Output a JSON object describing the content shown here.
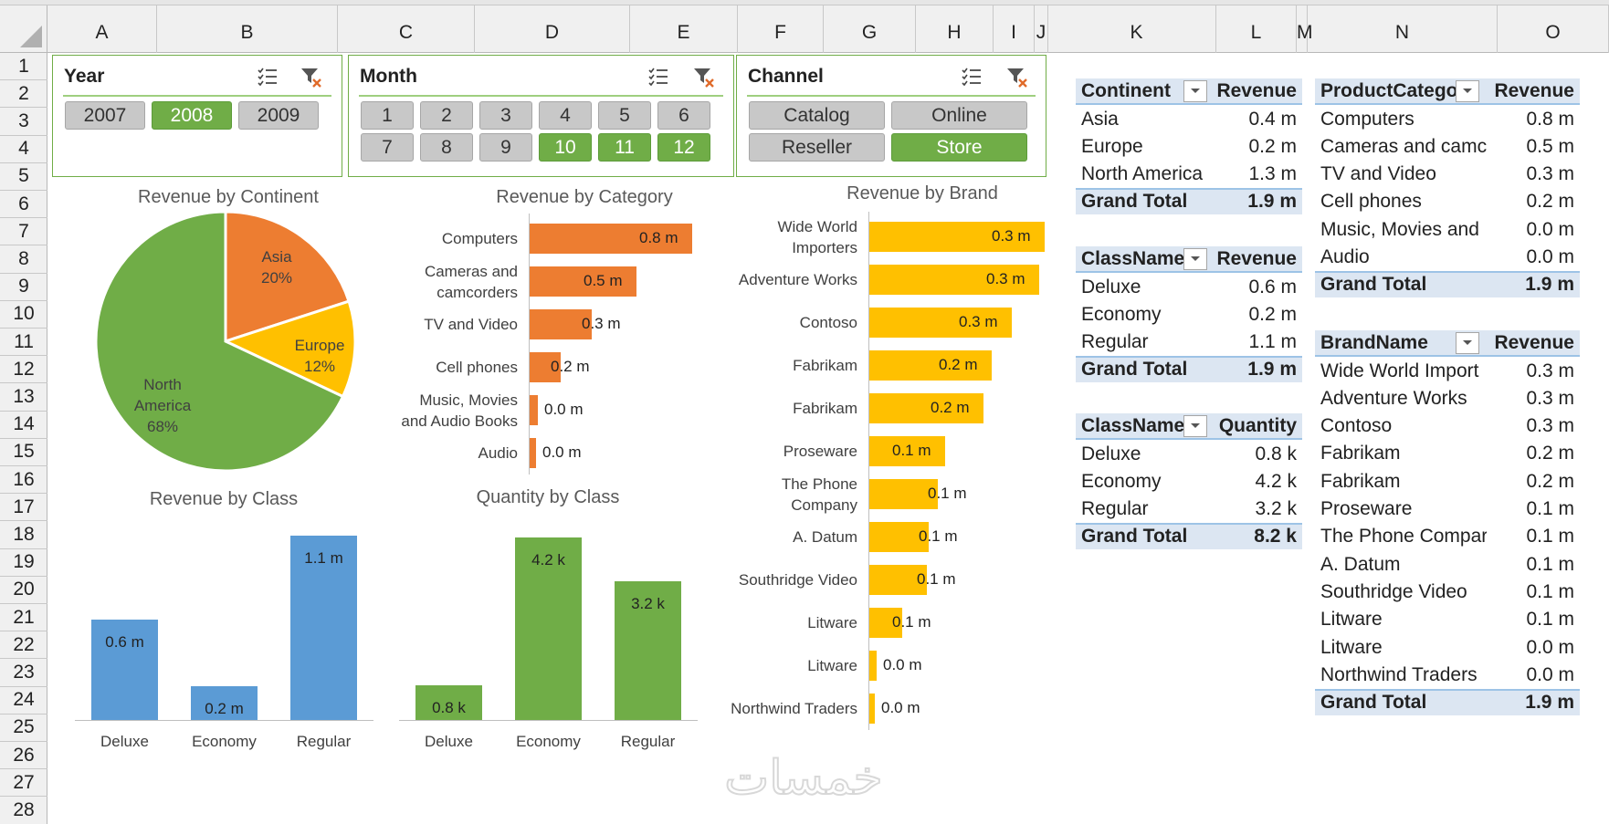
{
  "columns": [
    "A",
    "B",
    "C",
    "D",
    "E",
    "F",
    "G",
    "H",
    "I",
    "J",
    "K",
    "L",
    "M",
    "N",
    "O"
  ],
  "rows": [
    "1",
    "2",
    "3",
    "4",
    "5",
    "6",
    "7",
    "8",
    "9",
    "10",
    "11",
    "12",
    "13",
    "14",
    "15",
    "16",
    "17",
    "18",
    "19",
    "20",
    "21",
    "22",
    "23",
    "24",
    "25",
    "26",
    "27",
    "28"
  ],
  "colors": {
    "green": "#70ad47",
    "orange": "#ed7d31",
    "gold": "#ffc000",
    "blue": "#5b9bd5",
    "gray": "#c8c8c8"
  },
  "slicers": {
    "year": {
      "title": "Year",
      "items": [
        {
          "label": "2007",
          "selected": false
        },
        {
          "label": "2008",
          "selected": true
        },
        {
          "label": "2009",
          "selected": false
        }
      ]
    },
    "month": {
      "title": "Month",
      "items": [
        {
          "label": "1",
          "selected": false
        },
        {
          "label": "2",
          "selected": false
        },
        {
          "label": "3",
          "selected": false
        },
        {
          "label": "4",
          "selected": false
        },
        {
          "label": "5",
          "selected": false
        },
        {
          "label": "6",
          "selected": false
        },
        {
          "label": "7",
          "selected": false
        },
        {
          "label": "8",
          "selected": false
        },
        {
          "label": "9",
          "selected": false
        },
        {
          "label": "10",
          "selected": true
        },
        {
          "label": "11",
          "selected": true
        },
        {
          "label": "12",
          "selected": true
        }
      ]
    },
    "channel": {
      "title": "Channel",
      "items": [
        {
          "label": "Catalog",
          "selected": false
        },
        {
          "label": "Online",
          "selected": false
        },
        {
          "label": "Reseller",
          "selected": false
        },
        {
          "label": "Store",
          "selected": true
        }
      ]
    }
  },
  "chart_data": [
    {
      "id": "continent",
      "type": "pie",
      "title": "Revenue by Continent",
      "slices": [
        {
          "label": "Asia",
          "pct": 20,
          "pct_label": "20%",
          "color": "#ed7d31"
        },
        {
          "label": "Europe",
          "pct": 12,
          "pct_label": "12%",
          "color": "#ffc000"
        },
        {
          "label": "North America",
          "pct": 68,
          "pct_label": "68%",
          "color": "#70ad47"
        }
      ]
    },
    {
      "id": "category",
      "type": "bar",
      "orientation": "horizontal",
      "title": "Revenue by Category",
      "categories": [
        "Computers",
        "Cameras and camcorders",
        "TV and Video",
        "Cell phones",
        "Music, Movies and Audio Books",
        "Audio"
      ],
      "values": [
        0.8,
        0.5,
        0.3,
        0.2,
        0.0,
        0.0
      ],
      "labels": [
        "0.8 m",
        "0.5 m",
        "0.3 m",
        "0.2 m",
        "0.0 m",
        "0.0 m"
      ],
      "bar_fraction": [
        1,
        0.66,
        0.38,
        0.19,
        0.05,
        0.04
      ],
      "color": "#ed7d31"
    },
    {
      "id": "brand",
      "type": "bar",
      "orientation": "horizontal",
      "title": "Revenue by Brand",
      "categories": [
        "Wide World Importers",
        "Adventure Works",
        "Contoso",
        "Fabrikam",
        "Fabrikam",
        "Proseware",
        "The Phone Company",
        "A. Datum",
        "Southridge Video",
        "Litware",
        "Litware",
        "Northwind Traders"
      ],
      "values": [
        0.3,
        0.3,
        0.3,
        0.2,
        0.2,
        0.1,
        0.1,
        0.1,
        0.1,
        0.1,
        0.0,
        0.0
      ],
      "labels": [
        "0.3 m",
        "0.3 m",
        "0.3 m",
        "0.2 m",
        "0.2 m",
        "0.1 m",
        "0.1 m",
        "0.1 m",
        "0.1 m",
        "0.1 m",
        "0.0 m",
        "0.0 m"
      ],
      "bar_fraction": [
        1,
        0.97,
        0.81,
        0.7,
        0.65,
        0.43,
        0.39,
        0.34,
        0.33,
        0.19,
        0.04,
        0.025
      ],
      "color": "#ffc000"
    },
    {
      "id": "classrev",
      "type": "bar",
      "orientation": "vertical",
      "title": "Revenue by Class",
      "categories": [
        "Deluxe",
        "Economy",
        "Regular"
      ],
      "values": [
        0.6,
        0.2,
        1.1
      ],
      "labels": [
        "0.6 m",
        "0.2 m",
        "1.1 m"
      ],
      "ymax": 1.1,
      "color": "#5b9bd5"
    },
    {
      "id": "classqty",
      "type": "bar",
      "orientation": "vertical",
      "title": "Quantity by Class",
      "categories": [
        "Deluxe",
        "Economy",
        "Regular"
      ],
      "values": [
        0.8,
        4.2,
        3.2
      ],
      "labels": [
        "0.8 k",
        "4.2 k",
        "3.2 k"
      ],
      "ymax": 4.2,
      "color": "#70ad47"
    }
  ],
  "pivots": {
    "continent": {
      "headers": [
        "Continent",
        "Revenue"
      ],
      "rows": [
        [
          "Asia",
          "0.4 m"
        ],
        [
          "Europe",
          "0.2 m"
        ],
        [
          "North America",
          "1.3 m"
        ]
      ],
      "total": [
        "Grand Total",
        "1.9 m"
      ]
    },
    "classrev": {
      "headers": [
        "ClassName",
        "Revenue"
      ],
      "rows": [
        [
          "Deluxe",
          "0.6 m"
        ],
        [
          "Economy",
          "0.2 m"
        ],
        [
          "Regular",
          "1.1 m"
        ]
      ],
      "total": [
        "Grand Total",
        "1.9 m"
      ]
    },
    "classqty": {
      "headers": [
        "ClassName",
        "Quantity"
      ],
      "rows": [
        [
          "Deluxe",
          "0.8 k"
        ],
        [
          "Economy",
          "4.2 k"
        ],
        [
          "Regular",
          "3.2 k"
        ]
      ],
      "total": [
        "Grand Total",
        "8.2 k"
      ]
    },
    "category": {
      "headers": [
        "ProductCategor",
        "Revenue"
      ],
      "rows": [
        [
          "Computers",
          "0.8 m"
        ],
        [
          "Cameras and camc",
          "0.5 m"
        ],
        [
          "TV and Video",
          "0.3 m"
        ],
        [
          "Cell phones",
          "0.2 m"
        ],
        [
          "Music, Movies and",
          "0.0 m"
        ],
        [
          "Audio",
          "0.0 m"
        ]
      ],
      "total": [
        "Grand Total",
        "1.9 m"
      ]
    },
    "brand": {
      "headers": [
        "BrandName",
        "Revenue"
      ],
      "rows": [
        [
          "Wide World Import",
          "0.3 m"
        ],
        [
          "Adventure Works",
          "0.3 m"
        ],
        [
          "Contoso",
          "0.3 m"
        ],
        [
          "Fabrikam",
          "0.2 m"
        ],
        [
          "Fabrikam",
          "0.2 m"
        ],
        [
          "Proseware",
          "0.1 m"
        ],
        [
          "The Phone Compar",
          "0.1 m"
        ],
        [
          "A. Datum",
          "0.1 m"
        ],
        [
          "Southridge Video",
          "0.1 m"
        ],
        [
          "Litware",
          "0.1 m"
        ],
        [
          "Litware",
          "0.0 m"
        ],
        [
          "Northwind Traders",
          "0.0 m"
        ]
      ],
      "total": [
        "Grand Total",
        "1.9 m"
      ]
    }
  },
  "watermark": "خمسات"
}
